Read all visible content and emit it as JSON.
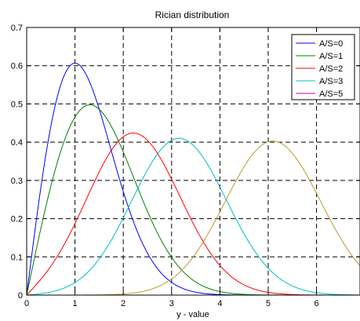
{
  "chart_data": {
    "type": "line",
    "title": "Rician distribution",
    "xlabel": "y - value",
    "ylabel": "",
    "xlim": [
      0,
      6.9
    ],
    "ylim": [
      0,
      0.7
    ],
    "xticks": [
      "0",
      "1",
      "2",
      "3",
      "4",
      "5",
      "6"
    ],
    "yticks": [
      "0",
      "0.1",
      "0.2",
      "0.3",
      "0.4",
      "0.5",
      "0.6",
      "0.7"
    ],
    "grid": true,
    "legend_position": "top-right",
    "sigma": 1,
    "series": [
      {
        "name": "A/S=0",
        "nu": 0,
        "color": "#0000ff"
      },
      {
        "name": "A/S=1",
        "nu": 1,
        "color": "#008000"
      },
      {
        "name": "A/S=2",
        "nu": 2,
        "color": "#ff0000"
      },
      {
        "name": "A/S=3",
        "nu": 3,
        "color": "#00bfbf"
      },
      {
        "name": "A/S=5",
        "nu": 5,
        "color": "#bf00bf",
        "drawn_color": "#b89b2c"
      }
    ]
  }
}
